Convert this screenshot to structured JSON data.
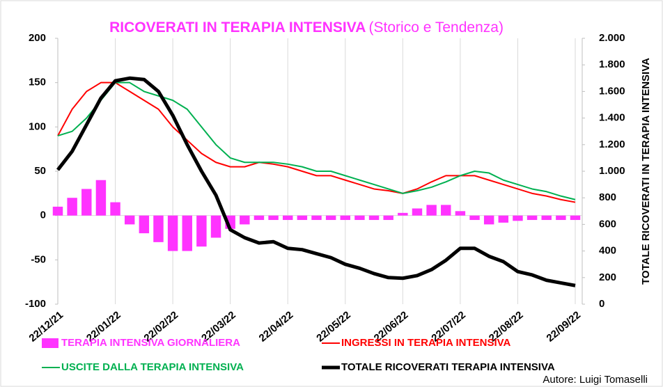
{
  "chart_data": {
    "type": "combo",
    "title": "RICOVERATI IN TERAPIA INTENSIVA",
    "subtitle": "(Storico e Tendenza)",
    "y2_label": "TOTALE RICOVERATI IN TERAPIA INTENSIVA",
    "author": "Autore: Luigi Tomaselli",
    "categories": [
      "22/12/21",
      null,
      null,
      null,
      "22/01/22",
      null,
      null,
      null,
      "22/02/22",
      null,
      null,
      null,
      "22/03/22",
      null,
      null,
      null,
      "22/04/22",
      null,
      null,
      null,
      "22/05/22",
      null,
      null,
      null,
      "22/06/22",
      null,
      null,
      null,
      "22/07/22",
      null,
      null,
      null,
      "22/08/22",
      null,
      null,
      null,
      "22/09/22"
    ],
    "ylim": [
      -100,
      200
    ],
    "yticks": [
      -100,
      -50,
      0,
      50,
      100,
      150,
      200
    ],
    "y2lim": [
      0,
      2000
    ],
    "y2ticks": [
      0,
      200,
      400,
      600,
      800,
      {
        "value": 1000,
        "label": "1.000"
      },
      {
        "value": 1200,
        "label": "1.200"
      },
      {
        "value": 1400,
        "label": "1.400"
      },
      {
        "value": 1600,
        "label": "1.600"
      },
      {
        "value": 1800,
        "label": "1.800"
      },
      {
        "value": 2000,
        "label": "2.000"
      }
    ],
    "grid": "x",
    "series": [
      {
        "name": "TERAPIA INTENSIVA GIORNALIERA",
        "type": "bar",
        "color": "#ff33ff",
        "values": [
          10,
          20,
          30,
          40,
          15,
          -10,
          -20,
          -30,
          -40,
          -40,
          -35,
          -25,
          -15,
          -10,
          -5,
          -5,
          -5,
          -5,
          -5,
          -5,
          -5,
          -5,
          -5,
          -5,
          3,
          8,
          12,
          12,
          5,
          -5,
          -10,
          -8,
          -6,
          -5,
          -5,
          -5,
          -5
        ]
      },
      {
        "name": "INGRESSI IN TERAPIA INTENSIVA",
        "type": "line",
        "color": "#ff0000",
        "values": [
          90,
          120,
          140,
          150,
          150,
          140,
          130,
          120,
          100,
          85,
          70,
          60,
          55,
          55,
          60,
          58,
          55,
          50,
          45,
          45,
          40,
          35,
          30,
          28,
          25,
          30,
          38,
          45,
          45,
          45,
          40,
          35,
          30,
          25,
          22,
          18,
          15
        ]
      },
      {
        "name": "USCITE DALLA TERAPIA INTENSIVA",
        "type": "line",
        "color": "#00b050",
        "values": [
          90,
          95,
          110,
          130,
          150,
          150,
          140,
          135,
          130,
          120,
          100,
          80,
          65,
          60,
          60,
          60,
          58,
          55,
          50,
          50,
          45,
          40,
          35,
          30,
          25,
          28,
          32,
          38,
          45,
          50,
          48,
          40,
          35,
          30,
          27,
          22,
          18
        ]
      },
      {
        "name": "TOTALE RICOVERATI TERAPIA INTENSIVA",
        "type": "line",
        "axis": "y2",
        "color": "#000000",
        "values": [
          1010,
          1150,
          1350,
          1550,
          1680,
          1700,
          1690,
          1600,
          1420,
          1200,
          1000,
          820,
          560,
          500,
          460,
          470,
          420,
          410,
          380,
          350,
          300,
          270,
          230,
          200,
          195,
          215,
          260,
          330,
          420,
          420,
          360,
          320,
          245,
          220,
          180,
          160,
          140
        ]
      }
    ]
  }
}
